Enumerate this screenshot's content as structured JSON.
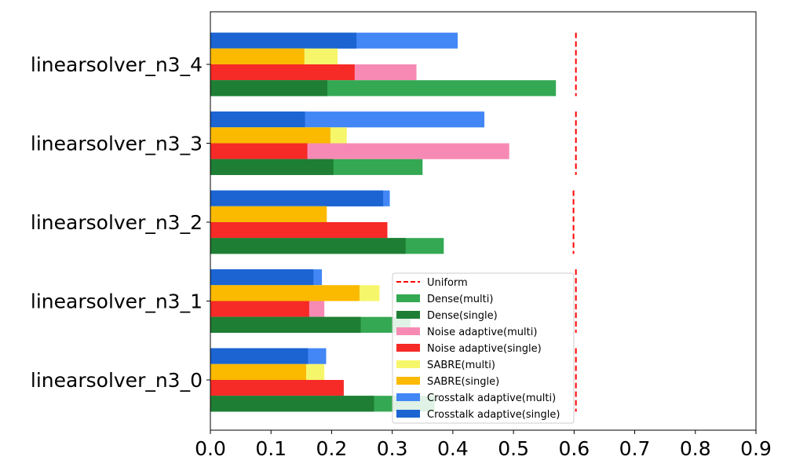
{
  "chart_data": {
    "type": "bar",
    "orientation": "horizontal",
    "categories": [
      "linearsolver_n3_0",
      "linearsolver_n3_1",
      "linearsolver_n3_2",
      "linearsolver_n3_3",
      "linearsolver_n3_4"
    ],
    "xlim": [
      0.0,
      0.9
    ],
    "xticks": [
      "0.0",
      "0.1",
      "0.2",
      "0.3",
      "0.4",
      "0.5",
      "0.6",
      "0.7",
      "0.8",
      "0.9"
    ],
    "grid": false,
    "legend_position": "lower-right",
    "groups": [
      {
        "name": "Dense",
        "multi": {
          "name": "Dense(multi)",
          "color": "#34a853",
          "values": [
            0.37,
            0.33,
            0.385,
            0.35,
            0.57
          ]
        },
        "single": {
          "name": "Dense(single)",
          "color": "#1e7e34",
          "values": [
            0.27,
            0.248,
            0.322,
            0.203,
            0.193
          ]
        }
      },
      {
        "name": "Noise adaptive",
        "multi": {
          "name": "Noise adaptive(multi)",
          "color": "#f78ab4",
          "values": [
            0.22,
            0.188,
            0.292,
            0.493,
            0.34
          ]
        },
        "single": {
          "name": "Noise adaptive(single)",
          "color": "#f62a27",
          "values": [
            0.22,
            0.163,
            0.292,
            0.16,
            0.238
          ]
        }
      },
      {
        "name": "SABRE",
        "multi": {
          "name": "SABRE(multi)",
          "color": "#f6f66a",
          "values": [
            0.188,
            0.279,
            0.192,
            0.225,
            0.21
          ]
        },
        "single": {
          "name": "SABRE(single)",
          "color": "#fbb900",
          "values": [
            0.158,
            0.246,
            0.192,
            0.198,
            0.155
          ]
        }
      },
      {
        "name": "Crosstalk adaptive",
        "multi": {
          "name": "Crosstalk adaptive(multi)",
          "color": "#4287f5",
          "values": [
            0.191,
            0.184,
            0.296,
            0.452,
            0.408
          ]
        },
        "single": {
          "name": "Crosstalk adaptive(single)",
          "color": "#1b64d2",
          "values": [
            0.161,
            0.17,
            0.285,
            0.156,
            0.241
          ]
        }
      }
    ],
    "uniform": {
      "name": "Uniform",
      "color": "#ff0000",
      "values": [
        0.603,
        0.603,
        0.599,
        0.603,
        0.603
      ]
    },
    "legend": [
      "Uniform",
      "Dense(multi)",
      "Dense(single)",
      "Noise adaptive(multi)",
      "Noise adaptive(single)",
      "SABRE(multi)",
      "SABRE(single)",
      "Crosstalk adaptive(multi)",
      "Crosstalk adaptive(single)"
    ]
  }
}
